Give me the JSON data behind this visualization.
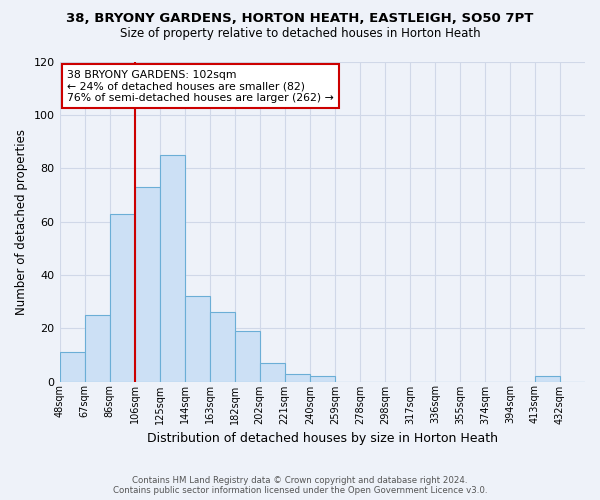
{
  "title_line1": "38, BRYONY GARDENS, HORTON HEATH, EASTLEIGH, SO50 7PT",
  "title_line2": "Size of property relative to detached houses in Horton Heath",
  "xlabel": "Distribution of detached houses by size in Horton Heath",
  "ylabel": "Number of detached properties",
  "bin_labels": [
    "48sqm",
    "67sqm",
    "86sqm",
    "106sqm",
    "125sqm",
    "144sqm",
    "163sqm",
    "182sqm",
    "202sqm",
    "221sqm",
    "240sqm",
    "259sqm",
    "278sqm",
    "298sqm",
    "317sqm",
    "336sqm",
    "355sqm",
    "374sqm",
    "394sqm",
    "413sqm",
    "432sqm"
  ],
  "bar_heights": [
    11,
    25,
    63,
    73,
    85,
    32,
    26,
    19,
    7,
    3,
    2,
    0,
    0,
    0,
    0,
    0,
    0,
    0,
    0,
    2,
    0
  ],
  "bar_color": "#cce0f5",
  "bar_edge_color": "#6baed6",
  "property_line_color": "#cc0000",
  "annotation_text_line1": "38 BRYONY GARDENS: 102sqm",
  "annotation_text_line2": "← 24% of detached houses are smaller (82)",
  "annotation_text_line3": "76% of semi-detached houses are larger (262) →",
  "annotation_box_color": "#ffffff",
  "annotation_box_edge": "#cc0000",
  "ylim": [
    0,
    120
  ],
  "yticks": [
    0,
    20,
    40,
    60,
    80,
    100,
    120
  ],
  "footer_line1": "Contains HM Land Registry data © Crown copyright and database right 2024.",
  "footer_line2": "Contains public sector information licensed under the Open Government Licence v3.0.",
  "background_color": "#eef2f9",
  "grid_color": "#d0d8e8",
  "property_bin_index": 3
}
